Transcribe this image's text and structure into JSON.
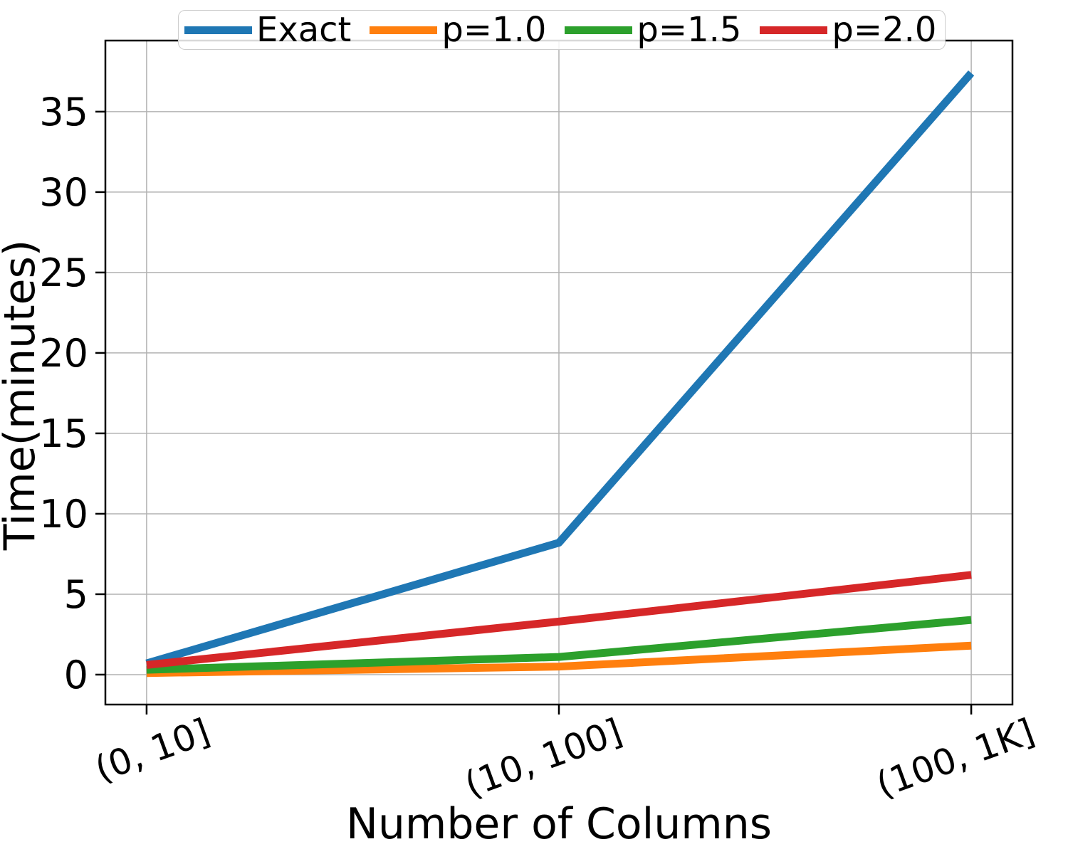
{
  "chart_data": {
    "type": "line",
    "title": "",
    "xlabel": "Number of Columns",
    "ylabel": "Time(minutes)",
    "categories": [
      "(0, 10]",
      "(10, 100]",
      "(100, 1K]"
    ],
    "series": [
      {
        "name": "Exact",
        "color": "#1f77b4",
        "values": [
          0.7,
          8.2,
          37.4
        ]
      },
      {
        "name": "p=1.0",
        "color": "#ff7f0e",
        "values": [
          0.1,
          0.5,
          1.8
        ]
      },
      {
        "name": "p=1.5",
        "color": "#2ca02c",
        "values": [
          0.3,
          1.1,
          3.4
        ]
      },
      {
        "name": "p=2.0",
        "color": "#d62728",
        "values": [
          0.6,
          3.3,
          6.2
        ]
      }
    ],
    "yticks": [
      0,
      5,
      10,
      15,
      20,
      25,
      30,
      35
    ],
    "ylim": [
      -1.86,
      39.42
    ],
    "xlim": [
      -0.1,
      2.1
    ],
    "grid": true,
    "legend_position": "top",
    "line_width": 11,
    "xticklabel_rotation_deg": -20
  },
  "colors": {
    "background": "#ffffff",
    "grid": "#b2b2b2",
    "spine": "#000000",
    "legend_border": "#cccccc"
  }
}
